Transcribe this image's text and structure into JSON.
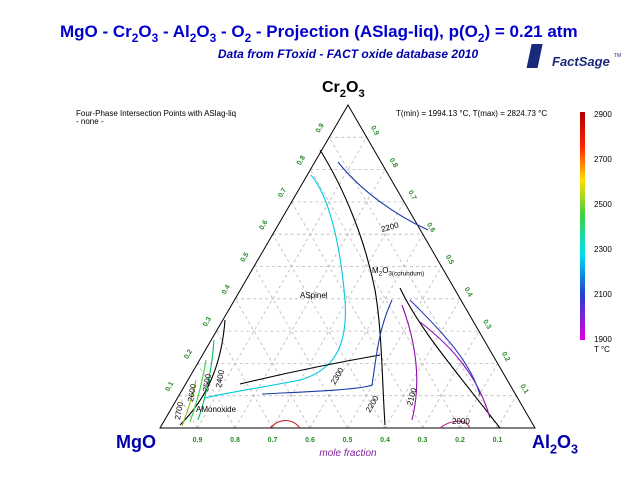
{
  "header": {
    "title": [
      "MgO - Cr",
      "2",
      "O",
      "3",
      " - Al",
      "2",
      "O",
      "3",
      " - O",
      "2",
      " -  Projection (ASlag-liq),  p(O",
      "2",
      ") = 0.21 atm"
    ],
    "subtitle": "Data from FToxid - FACT oxide database 2010",
    "logo": "FactSage",
    "logo_mark": "TM"
  },
  "diagram": {
    "top_vertex": [
      "Cr",
      "2",
      "O",
      "3"
    ],
    "left_vertex": "MgO",
    "right_vertex": [
      "Al",
      "2",
      "O",
      "3"
    ],
    "axis_label": "mole fraction",
    "bottom_ticks": [
      "0.9",
      "0.8",
      "0.7",
      "0.6",
      "0.5",
      "0.4",
      "0.3",
      "0.2",
      "0.1"
    ],
    "left_ticks": [
      "0.1",
      "0.2",
      "0.3",
      "0.4",
      "0.5",
      "0.6",
      "0.7",
      "0.8",
      "0.9"
    ],
    "right_ticks": [
      "0.1",
      "0.2",
      "0.3",
      "0.4",
      "0.5",
      "0.6",
      "0.7",
      "0.8",
      "0.9"
    ],
    "info_left": [
      "Four-Phase Intersection Points with ASlag-liq",
      "- none -"
    ],
    "info_right": "T(min) = 1994.13 °C, T(max) = 2824.73 °C",
    "regions": {
      "spinel": "ASpinel",
      "corundum": [
        "M",
        "2",
        "O",
        "3(corundum)"
      ],
      "monoxide": "AMonoxide"
    },
    "isotherms": [
      "2200",
      "2300",
      "2200",
      "2100",
      "2000",
      "2400",
      "2500",
      "2600",
      "2700"
    ]
  },
  "colorbar": {
    "labels": [
      "2900",
      "2700",
      "2500",
      "2300",
      "2100",
      "1900"
    ],
    "unit": "T °C"
  }
}
